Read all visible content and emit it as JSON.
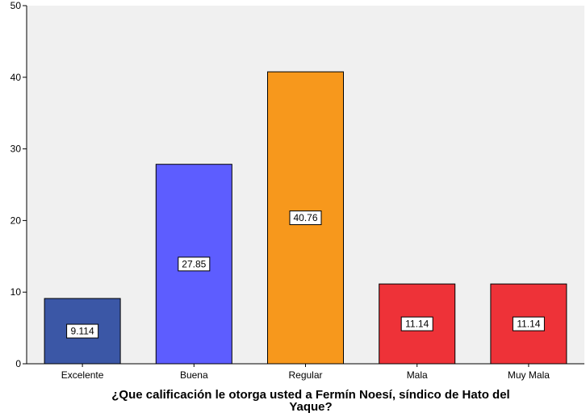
{
  "chart_data": {
    "type": "bar",
    "categories": [
      "Excelente",
      "Buena",
      "Regular",
      "Mala",
      "Muy Mala"
    ],
    "values": [
      9.114,
      27.85,
      40.76,
      11.14,
      11.14
    ],
    "data_labels": [
      "9.114",
      "27.85",
      "40.76",
      "11.14",
      "11.14"
    ],
    "colors": [
      "#3b57a6",
      "#5d5dff",
      "#f7981c",
      "#ee3238",
      "#ee3238"
    ],
    "xlabel_lines": [
      "¿Que calificación  le otorga usted a Fermín Noesí, síndico de Hato del",
      "Yaque?"
    ],
    "ylabel": "",
    "ylim": [
      0,
      50
    ],
    "yticks": [
      0,
      10,
      20,
      30,
      40,
      50
    ],
    "ytick_labels": [
      "0",
      "10",
      "20",
      "30",
      "40",
      "50"
    ],
    "grid": false,
    "legend": "none",
    "plot_background": "#f0f0f0"
  }
}
